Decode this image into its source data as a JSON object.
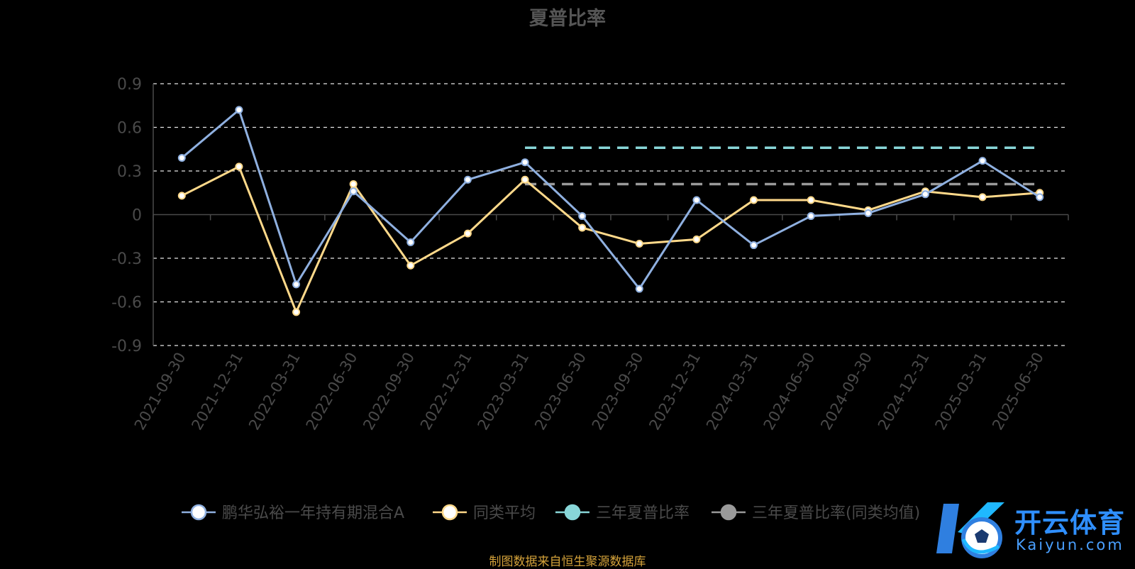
{
  "title": "夏普比率",
  "footer": "制图数据来自恒生聚源数据库",
  "watermark": {
    "name": "开云体育",
    "domain": "Kaiyun.com"
  },
  "colors": {
    "fund": "#8fb0e0",
    "peer": "#ffd98a",
    "three_year": "#88d6d8",
    "three_year_peer": "#9a9a9a",
    "axis_text": "#4a4a4a",
    "grid": "#e6e6e6"
  },
  "chart_data": {
    "type": "line",
    "title": "夏普比率",
    "categories": [
      "2021-09-30",
      "2021-12-31",
      "2022-03-31",
      "2022-06-30",
      "2022-09-30",
      "2022-12-31",
      "2023-03-31",
      "2023-06-30",
      "2023-09-30",
      "2023-12-31",
      "2024-03-31",
      "2024-06-30",
      "2024-09-30",
      "2024-12-31",
      "2025-03-31",
      "2025-06-30"
    ],
    "ylim": [
      -0.9,
      0.9
    ],
    "yticks": [
      "0.9",
      "0.6",
      "0.3",
      "0",
      "-0.3",
      "-0.6",
      "-0.9"
    ],
    "grid": true,
    "legend_position": "bottom",
    "series": [
      {
        "name": "鹏华弘裕一年持有期混合A",
        "values": [
          0.39,
          0.72,
          -0.48,
          0.16,
          -0.19,
          0.24,
          0.36,
          -0.01,
          -0.51,
          0.1,
          -0.21,
          -0.01,
          0.01,
          0.14,
          0.37,
          0.12
        ]
      },
      {
        "name": "同类平均",
        "values": [
          0.13,
          0.33,
          -0.67,
          0.21,
          -0.35,
          -0.13,
          0.24,
          -0.09,
          -0.2,
          -0.17,
          0.1,
          0.1,
          0.03,
          0.16,
          0.12,
          0.15
        ]
      },
      {
        "name": "三年夏普比率",
        "values": [
          null,
          null,
          null,
          null,
          null,
          null,
          0.46,
          0.46,
          0.46,
          0.46,
          0.46,
          0.46,
          0.46,
          0.46,
          0.46,
          0.46
        ]
      },
      {
        "name": "三年夏普比率(同类均值)",
        "values": [
          null,
          null,
          null,
          null,
          null,
          null,
          0.21,
          0.21,
          0.21,
          0.21,
          0.21,
          0.21,
          0.21,
          0.21,
          0.21,
          0.21
        ]
      }
    ]
  }
}
